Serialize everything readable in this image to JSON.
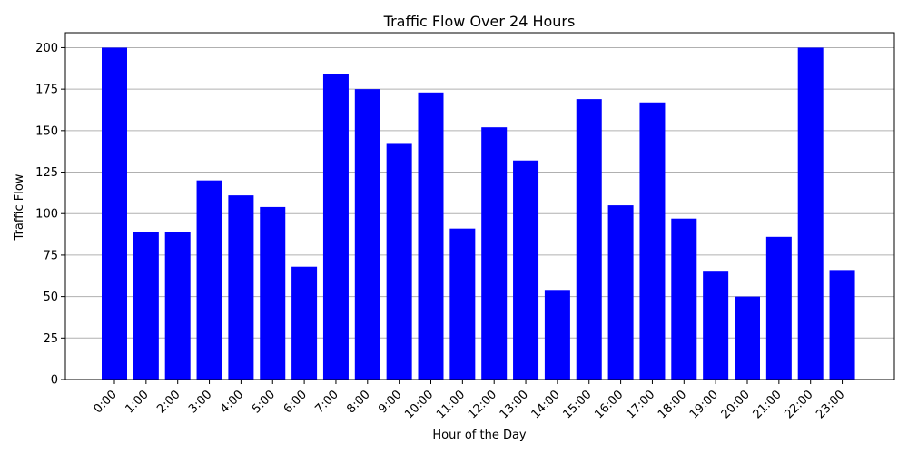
{
  "chart_data": {
    "type": "bar",
    "title": "Traffic Flow Over 24 Hours",
    "xlabel": "Hour of the Day",
    "ylabel": "Traffic Flow",
    "categories": [
      "0:00",
      "1:00",
      "2:00",
      "3:00",
      "4:00",
      "5:00",
      "6:00",
      "7:00",
      "8:00",
      "9:00",
      "10:00",
      "11:00",
      "12:00",
      "13:00",
      "14:00",
      "15:00",
      "16:00",
      "17:00",
      "18:00",
      "19:00",
      "20:00",
      "21:00",
      "22:00",
      "23:00"
    ],
    "values": [
      200,
      89,
      89,
      120,
      111,
      104,
      68,
      184,
      175,
      142,
      173,
      91,
      152,
      132,
      54,
      169,
      105,
      167,
      97,
      65,
      50,
      86,
      200,
      66
    ],
    "ylim": [
      0,
      209
    ],
    "yticks": [
      0,
      25,
      50,
      75,
      100,
      125,
      150,
      175,
      200
    ],
    "grid": "y",
    "bar_color": "#0000ff",
    "grid_color": "#b0b0b0"
  }
}
